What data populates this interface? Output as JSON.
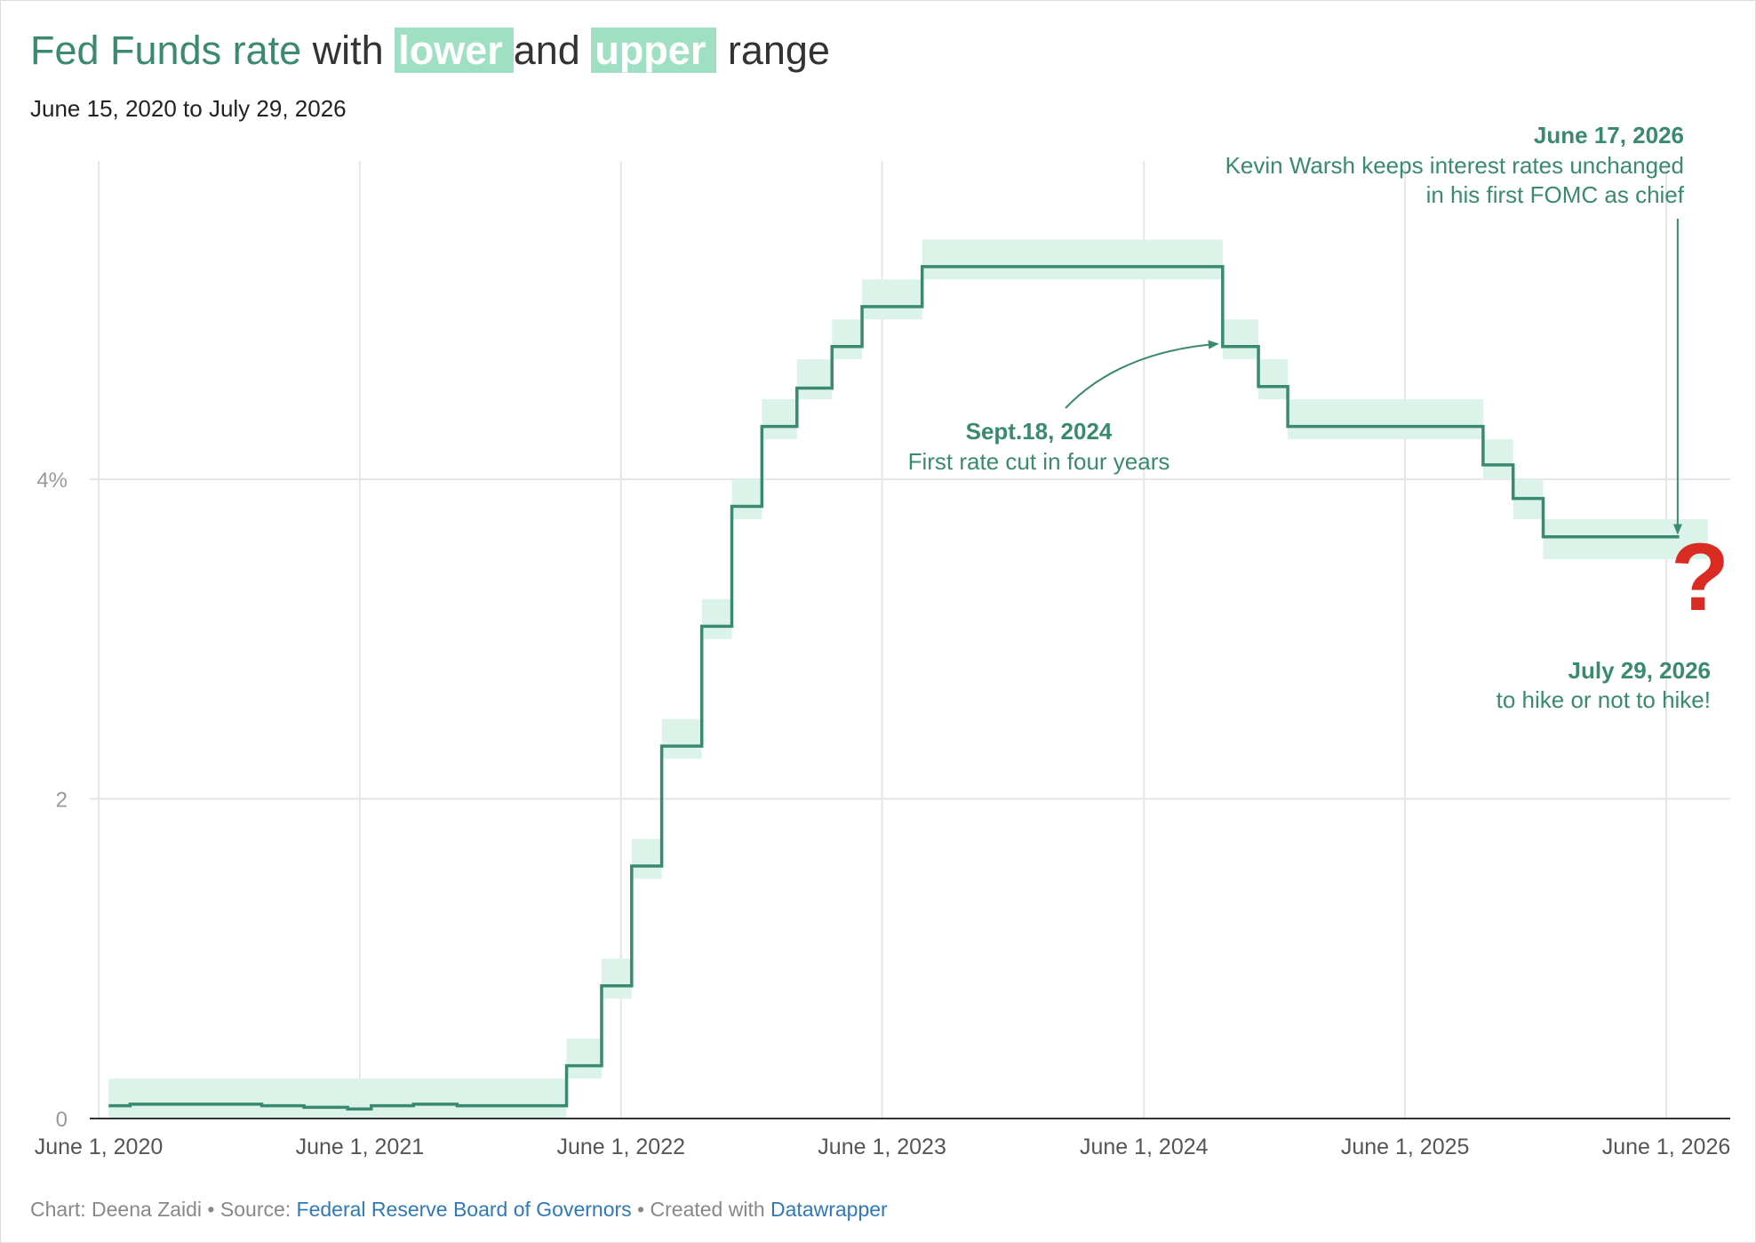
{
  "header": {
    "title_part1": "Fed Funds rate",
    "title_part2": " with ",
    "title_lower": "lower",
    "title_part3": "and ",
    "title_upper": "upper",
    "title_part4": " range",
    "subtitle": "June 15, 2020 to July 29, 2026"
  },
  "footer": {
    "chart_label": "Chart: Deena Zaidi",
    "sep1": " • ",
    "source_label": "Source: ",
    "source_link": "Federal Reserve Board of Governors",
    "sep2": " • ",
    "created_label": "Created with ",
    "created_link": "Datawrapper"
  },
  "colors": {
    "line": "#3a8a70",
    "band": "#dcf3e9",
    "annotation": "#3a8a70",
    "question": "#d92b22",
    "grid": "#e6e6e6",
    "axis": "#333333"
  },
  "chart_data": {
    "type": "line",
    "x_domain": [
      "2020-06-01",
      "2026-08-01"
    ],
    "ylim": [
      0,
      5.5
    ],
    "y_ticks": [
      {
        "value": 0,
        "label": "0"
      },
      {
        "value": 2,
        "label": "2"
      },
      {
        "value": 4,
        "label": "4%"
      }
    ],
    "x_ticks": [
      {
        "date": "2020-06-01",
        "label": "June 1, 2020"
      },
      {
        "date": "2021-06-01",
        "label": "June 1, 2021"
      },
      {
        "date": "2022-06-01",
        "label": "June 1, 2022"
      },
      {
        "date": "2023-06-01",
        "label": "June 1, 2023"
      },
      {
        "date": "2024-06-01",
        "label": "June 1, 2024"
      },
      {
        "date": "2025-06-01",
        "label": "June 1, 2025"
      },
      {
        "date": "2026-06-01",
        "label": "June 1, 2026"
      }
    ],
    "grid": true,
    "range_bands": [
      {
        "start": "2020-06-15",
        "end": "2022-03-17",
        "lower": 0.0,
        "upper": 0.25
      },
      {
        "start": "2022-03-17",
        "end": "2022-05-05",
        "lower": 0.25,
        "upper": 0.5
      },
      {
        "start": "2022-05-05",
        "end": "2022-06-16",
        "lower": 0.75,
        "upper": 1.0
      },
      {
        "start": "2022-06-16",
        "end": "2022-07-28",
        "lower": 1.5,
        "upper": 1.75
      },
      {
        "start": "2022-07-28",
        "end": "2022-09-22",
        "lower": 2.25,
        "upper": 2.5
      },
      {
        "start": "2022-09-22",
        "end": "2022-11-03",
        "lower": 3.0,
        "upper": 3.25
      },
      {
        "start": "2022-11-03",
        "end": "2022-12-15",
        "lower": 3.75,
        "upper": 4.0
      },
      {
        "start": "2022-12-15",
        "end": "2023-02-02",
        "lower": 4.25,
        "upper": 4.5
      },
      {
        "start": "2023-02-02",
        "end": "2023-03-23",
        "lower": 4.5,
        "upper": 4.75
      },
      {
        "start": "2023-03-23",
        "end": "2023-05-04",
        "lower": 4.75,
        "upper": 5.0
      },
      {
        "start": "2023-05-04",
        "end": "2023-07-27",
        "lower": 5.0,
        "upper": 5.25
      },
      {
        "start": "2023-07-27",
        "end": "2024-09-19",
        "lower": 5.25,
        "upper": 5.5
      },
      {
        "start": "2024-09-19",
        "end": "2024-11-08",
        "lower": 4.75,
        "upper": 5.0
      },
      {
        "start": "2024-11-08",
        "end": "2024-12-19",
        "lower": 4.5,
        "upper": 4.75
      },
      {
        "start": "2024-12-19",
        "end": "2025-09-18",
        "lower": 4.25,
        "upper": 4.5
      },
      {
        "start": "2025-09-18",
        "end": "2025-10-30",
        "lower": 4.0,
        "upper": 4.25
      },
      {
        "start": "2025-10-30",
        "end": "2025-12-11",
        "lower": 3.75,
        "upper": 4.0
      },
      {
        "start": "2025-12-11",
        "end": "2026-07-29",
        "lower": 3.5,
        "upper": 3.75
      }
    ],
    "series": [
      {
        "values": [
          {
            "x": "2020-06-15",
            "y": 0.08
          },
          {
            "x": "2020-07-15",
            "y": 0.09
          },
          {
            "x": "2020-09-15",
            "y": 0.09
          },
          {
            "x": "2020-11-15",
            "y": 0.09
          },
          {
            "x": "2021-01-15",
            "y": 0.08
          },
          {
            "x": "2021-03-15",
            "y": 0.07
          },
          {
            "x": "2021-05-15",
            "y": 0.06
          },
          {
            "x": "2021-06-17",
            "y": 0.08
          },
          {
            "x": "2021-08-15",
            "y": 0.09
          },
          {
            "x": "2021-10-15",
            "y": 0.08
          },
          {
            "x": "2022-03-16",
            "y": 0.08
          },
          {
            "x": "2022-03-17",
            "y": 0.33
          },
          {
            "x": "2022-05-05",
            "y": 0.83
          },
          {
            "x": "2022-06-16",
            "y": 1.58
          },
          {
            "x": "2022-07-28",
            "y": 2.33
          },
          {
            "x": "2022-09-22",
            "y": 3.08
          },
          {
            "x": "2022-11-03",
            "y": 3.83
          },
          {
            "x": "2022-12-15",
            "y": 4.33
          },
          {
            "x": "2023-02-02",
            "y": 4.57
          },
          {
            "x": "2023-03-23",
            "y": 4.83
          },
          {
            "x": "2023-05-04",
            "y": 5.08
          },
          {
            "x": "2023-07-27",
            "y": 5.33
          },
          {
            "x": "2024-09-19",
            "y": 4.83
          },
          {
            "x": "2024-11-08",
            "y": 4.58
          },
          {
            "x": "2024-12-19",
            "y": 4.33
          },
          {
            "x": "2025-09-18",
            "y": 4.09
          },
          {
            "x": "2025-10-30",
            "y": 3.88
          },
          {
            "x": "2025-12-11",
            "y": 3.64
          },
          {
            "x": "2026-05-01",
            "y": 3.64
          },
          {
            "x": "2026-06-17",
            "y": 3.63
          }
        ]
      }
    ],
    "annotations": [
      {
        "id": "ann1",
        "date_label": "June 17, 2026",
        "text_line1": "Kevin Warsh keeps interest rates unchanged",
        "text_line2": "in his first FOMC as chief",
        "target_date": "2026-06-17",
        "target_value": 3.63
      },
      {
        "id": "ann2",
        "date_label": "Sept.18, 2024",
        "text": "First rate cut in four years",
        "target_date": "2024-09-19",
        "target_value": 4.83
      },
      {
        "id": "ann3",
        "date_label": "July 29, 2026",
        "text": "to hike or not to hike!",
        "symbol": "?"
      }
    ]
  }
}
